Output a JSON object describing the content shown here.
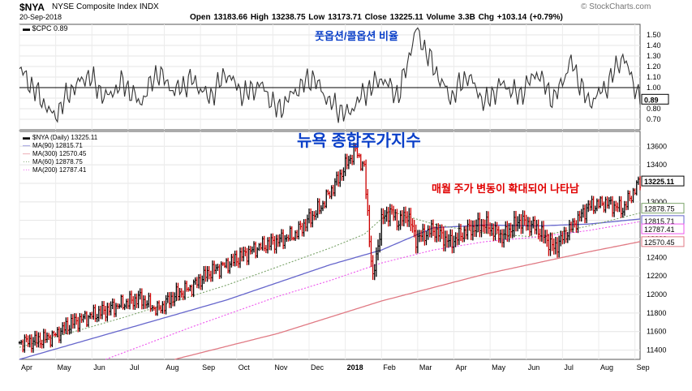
{
  "header": {
    "symbol": "$NYA",
    "name": "NYSE Composite Index INDX",
    "date": "20-Sep-2018",
    "quote": "Open 13183.66  High 13238.75  Low 13173.71  Close 13225.11  Volume 3.3B  Chg +103.14 (+0.79%)",
    "copyright": "© StockCharts.com"
  },
  "annotations": {
    "cpc": "풋옵션/콜옵션 비율",
    "nya": "뉴욕 종합주가지수",
    "volatility": "매월 주가 변동이 확대되어 나타남"
  },
  "colors": {
    "price": "#000000",
    "down_bar": "#cc0000",
    "ma90": "#6666cc",
    "ma300": "#e07a84",
    "ma60": "#7aa36a",
    "ma200": "#ee55ee",
    "annot_blue": "#0a3fc8",
    "annot_red": "#e00000"
  },
  "chart_data": [
    {
      "type": "line",
      "legend": [
        "$CPC 0.89"
      ],
      "ylim": [
        0.6,
        1.6
      ],
      "yticks": [
        "1.50",
        "1.40",
        "1.30",
        "1.20",
        "1.10",
        "1.00",
        "0.90",
        "0.80",
        "0.70"
      ],
      "yticks_values": [
        1.5,
        1.4,
        1.3,
        1.2,
        1.1,
        1.0,
        0.9,
        0.8,
        0.7
      ],
      "reference_line": 1.0,
      "last_value_label": "0.89",
      "last_value": 0.89,
      "x": [
        0,
        10,
        20,
        30,
        40,
        50,
        60,
        70,
        80,
        90,
        100,
        110,
        120,
        130,
        140,
        150,
        160,
        170,
        180,
        190,
        200,
        210,
        220,
        230,
        240,
        250,
        260,
        270,
        280,
        290,
        300,
        310,
        320,
        330,
        340,
        350,
        360
      ],
      "values": [
        1.18,
        0.95,
        0.72,
        0.98,
        1.12,
        0.9,
        1.05,
        0.85,
        1.15,
        0.96,
        1.08,
        0.9,
        1.14,
        0.93,
        1.03,
        0.78,
        0.97,
        1.1,
        0.86,
        0.74,
        0.95,
        1.09,
        0.92,
        1.55,
        1.2,
        0.9,
        1.12,
        0.85,
        1.04,
        0.92,
        1.15,
        0.88,
        1.25,
        0.85,
        1.0,
        1.3,
        0.89
      ]
    },
    {
      "type": "line",
      "legend": [
        "$NYA (Daily) 13225.11",
        "MA(90) 12815.71",
        "MA(300) 12570.45",
        "MA(60) 12878.75",
        "MA(200) 12787.41"
      ],
      "ylim": [
        11300,
        13760
      ],
      "yticks": [
        "13600",
        "13400",
        "13200",
        "13000",
        "12800",
        "12600",
        "12400",
        "12200",
        "12000",
        "11800",
        "11600",
        "11400"
      ],
      "yticks_values": [
        13600,
        13400,
        13200,
        13000,
        12800,
        12600,
        12400,
        12200,
        12000,
        11800,
        11600,
        11400
      ],
      "xticks": [
        "Apr",
        "May",
        "Jun",
        "Jul",
        "Aug",
        "Sep",
        "Oct",
        "Nov",
        "Dec",
        "2018",
        "Feb",
        "Mar",
        "Apr",
        "May",
        "Jun",
        "Jul",
        "Aug",
        "Sep"
      ],
      "xticks_pos": [
        0,
        21,
        42,
        63,
        84,
        105,
        126,
        147,
        168,
        189,
        210,
        231,
        252,
        273,
        294,
        315,
        336,
        357
      ],
      "price_labels": [
        "13225.11",
        "12878.75",
        "12815.71",
        "12787.41",
        "12570.45"
      ],
      "series": [
        {
          "name": "$NYA (Daily)",
          "x": [
            0,
            10,
            20,
            30,
            40,
            50,
            60,
            70,
            80,
            90,
            100,
            110,
            120,
            130,
            140,
            150,
            160,
            170,
            175,
            180,
            185,
            190,
            195,
            200,
            205,
            210,
            215,
            220,
            225,
            230,
            240,
            250,
            260,
            270,
            280,
            290,
            300,
            310,
            320,
            330,
            340,
            350,
            360
          ],
          "values": [
            11480,
            11500,
            11550,
            11690,
            11760,
            11830,
            11900,
            11960,
            11830,
            11990,
            12080,
            12240,
            12320,
            12430,
            12520,
            12580,
            12650,
            12850,
            12950,
            13100,
            13250,
            13420,
            13560,
            13350,
            12150,
            12800,
            12900,
            12780,
            12870,
            12600,
            12700,
            12560,
            12700,
            12760,
            12620,
            12800,
            12720,
            12500,
            12720,
            12950,
            12990,
            12920,
            13225
          ]
        },
        {
          "name": "MA(90)",
          "x": [
            0,
            60,
            120,
            180,
            210,
            240,
            270,
            300,
            330,
            360
          ],
          "values": [
            11300,
            11620,
            11940,
            12320,
            12480,
            12720,
            12750,
            12740,
            12760,
            12815
          ]
        },
        {
          "name": "MA(300)",
          "x": [
            90,
            150,
            210,
            270,
            330,
            360
          ],
          "values": [
            11300,
            11580,
            11930,
            12220,
            12460,
            12570
          ]
        },
        {
          "name": "MA(60)",
          "x": [
            0,
            60,
            120,
            180,
            200,
            215,
            240,
            270,
            300,
            330,
            360
          ],
          "values": [
            11430,
            11750,
            12100,
            12500,
            12650,
            12900,
            12760,
            12660,
            12620,
            12740,
            12880
          ]
        },
        {
          "name": "MA(200)",
          "x": [
            50,
            100,
            150,
            180,
            210,
            240,
            270,
            300,
            330,
            360
          ],
          "values": [
            11300,
            11650,
            11980,
            12150,
            12340,
            12480,
            12570,
            12620,
            12690,
            12787
          ]
        }
      ]
    }
  ]
}
